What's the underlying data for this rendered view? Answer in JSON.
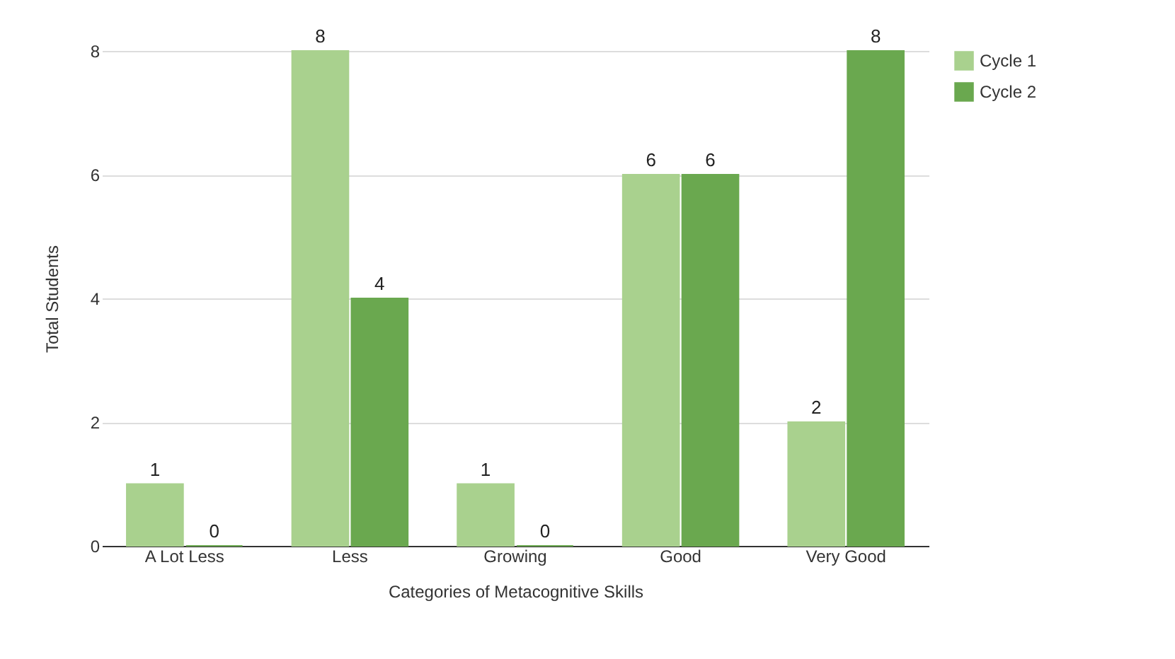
{
  "chart_data": {
    "type": "bar",
    "xlabel": "Categories of Metacognitive Skills",
    "ylabel": "Total Students",
    "categories": [
      "A Lot Less",
      "Less",
      "Growing",
      "Good",
      "Very Good"
    ],
    "series": [
      {
        "name": "Cycle 1",
        "color": "#a9d18e",
        "values": [
          1,
          8,
          1,
          6,
          2
        ]
      },
      {
        "name": "Cycle 2",
        "color": "#6aa84f",
        "values": [
          0,
          4,
          0,
          6,
          8
        ]
      }
    ],
    "ylim": [
      0,
      8
    ],
    "yticks": [
      0,
      2,
      4,
      6,
      8
    ],
    "grid": "y",
    "legend": "top right",
    "data_labels": true
  }
}
